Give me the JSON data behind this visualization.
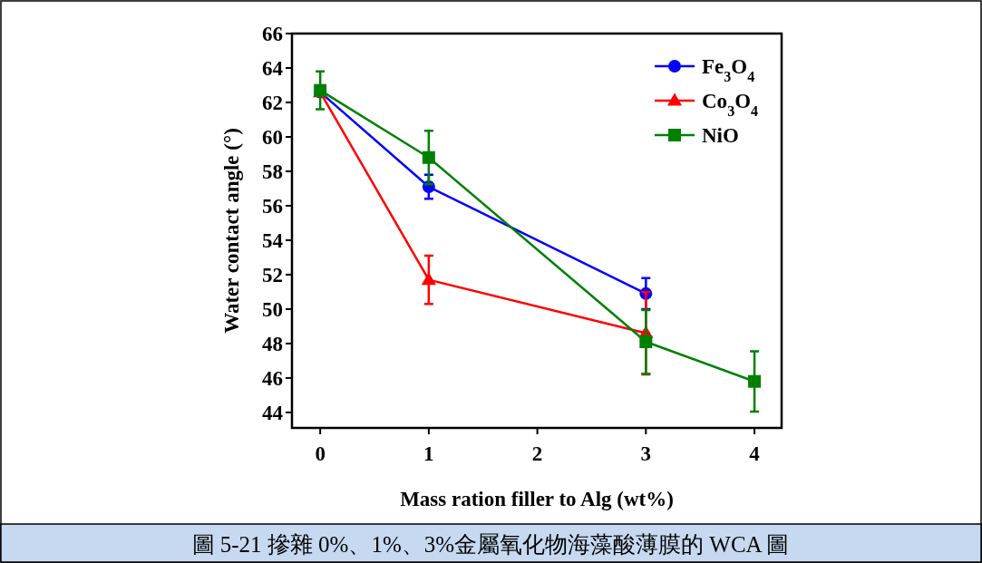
{
  "chart_data": {
    "type": "line",
    "xlabel": "Mass ration filler to Alg (wt%)",
    "ylabel": "Water contact angle (°)",
    "xlim": [
      -0.26,
      4.25
    ],
    "ylim": [
      43.1,
      66
    ],
    "xticks": [
      0,
      1,
      2,
      3,
      4
    ],
    "yticks": [
      44,
      46,
      48,
      50,
      52,
      54,
      56,
      58,
      60,
      62,
      64,
      66
    ],
    "grid": false,
    "legend": "top right",
    "series": [
      {
        "name": "Fe$_{3}$O$_{4}$",
        "color": "#0000ff",
        "marker": "circle",
        "x": [
          0,
          1,
          3
        ],
        "values": [
          62.6,
          57.1,
          50.9
        ],
        "errors": [
          null,
          0.7,
          0.9
        ]
      },
      {
        "name": "Co$_{3}$O$_{4}$",
        "color": "#ff0000",
        "marker": "triangle",
        "x": [
          0,
          1,
          3
        ],
        "values": [
          62.6,
          51.7,
          48.6
        ],
        "errors": [
          null,
          1.4,
          2.4
        ]
      },
      {
        "name": "NiO",
        "color": "#008000",
        "marker": "square",
        "x": [
          0,
          1,
          3,
          4
        ],
        "values": [
          62.7,
          58.8,
          48.1,
          45.8
        ],
        "errors": [
          1.1,
          1.55,
          1.85,
          1.75
        ]
      }
    ],
    "annotations": [
      "圖 5-21  摻雜 0%、1%、3%金屬氧化物海藻酸薄膜的 WCA 圖"
    ]
  }
}
